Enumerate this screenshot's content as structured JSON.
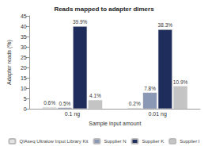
{
  "chart_data": {
    "type": "bar",
    "title": "Reads mapped to adapter dimers",
    "y_label": "Adapter reads (%)",
    "x_label": "Sample input amount",
    "categories": [
      "0.1 ng",
      "0.01 ng"
    ],
    "series": [
      {
        "name": "QIAseq Ultralow Input Library Kit",
        "color": "#e3e3e3",
        "values": [
          0.6,
          0.2
        ],
        "value_labels": [
          "0.6%",
          "0.2%"
        ]
      },
      {
        "name": "Supplier N",
        "color": "#8a97b5",
        "values": [
          0.5,
          7.8
        ],
        "value_labels": [
          "0.5%",
          "7.8%"
        ]
      },
      {
        "name": "Supplier K",
        "color": "#1f2d5c",
        "values": [
          39.9,
          38.3
        ],
        "value_labels": [
          "39.9%",
          "38.3%"
        ]
      },
      {
        "name": "Supplier I",
        "color": "#c4c4c4",
        "values": [
          4.1,
          10.9
        ],
        "value_labels": [
          "4.1%",
          "10.9%"
        ]
      }
    ],
    "ylim": [
      0,
      45
    ],
    "yticks": [
      0,
      5,
      10,
      15,
      20,
      25,
      30,
      35,
      40,
      45
    ],
    "grid": false,
    "legend": "bottom",
    "data_labels": true
  }
}
